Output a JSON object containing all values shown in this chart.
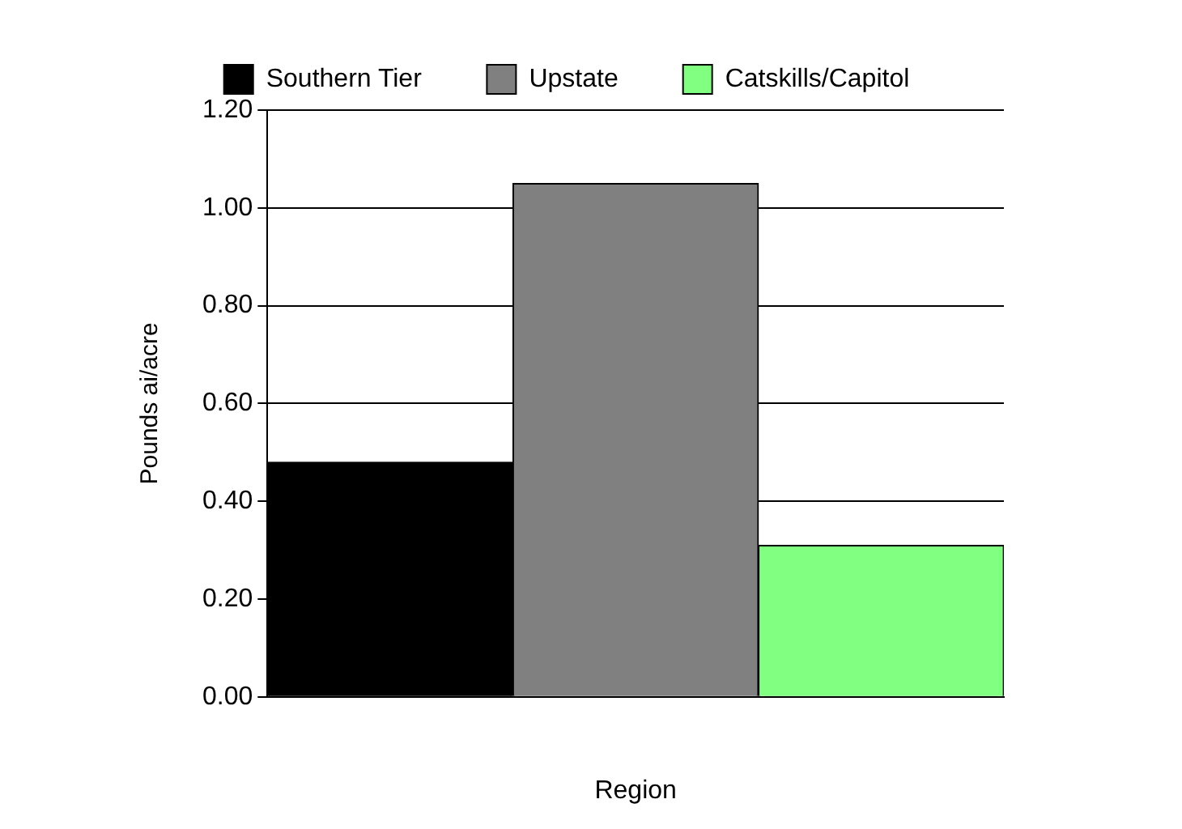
{
  "chart_data": {
    "type": "bar",
    "xlabel": "Region",
    "ylabel": "Pounds ai/acre",
    "categories": [
      null
    ],
    "series": [
      {
        "name": "Southern Tier",
        "color": "#000000",
        "values": [
          0.48
        ]
      },
      {
        "name": "Upstate",
        "color": "#808080",
        "values": [
          1.05
        ]
      },
      {
        "name": "Catskills/Capitol",
        "color": "#80ff80",
        "values": [
          0.31
        ]
      }
    ],
    "ylim": [
      0,
      1.2
    ],
    "yticks": [
      {
        "value": 0,
        "label": "0.00"
      },
      {
        "value": 0.2,
        "label": "0.20"
      },
      {
        "value": 0.4,
        "label": "0.40"
      },
      {
        "value": 0.6,
        "label": "0.60"
      },
      {
        "value": 0.8,
        "label": "0.80"
      },
      {
        "value": 1,
        "label": "1.00"
      },
      {
        "value": 1.2,
        "label": "1.20"
      }
    ],
    "grid": "y",
    "legend": "top"
  }
}
